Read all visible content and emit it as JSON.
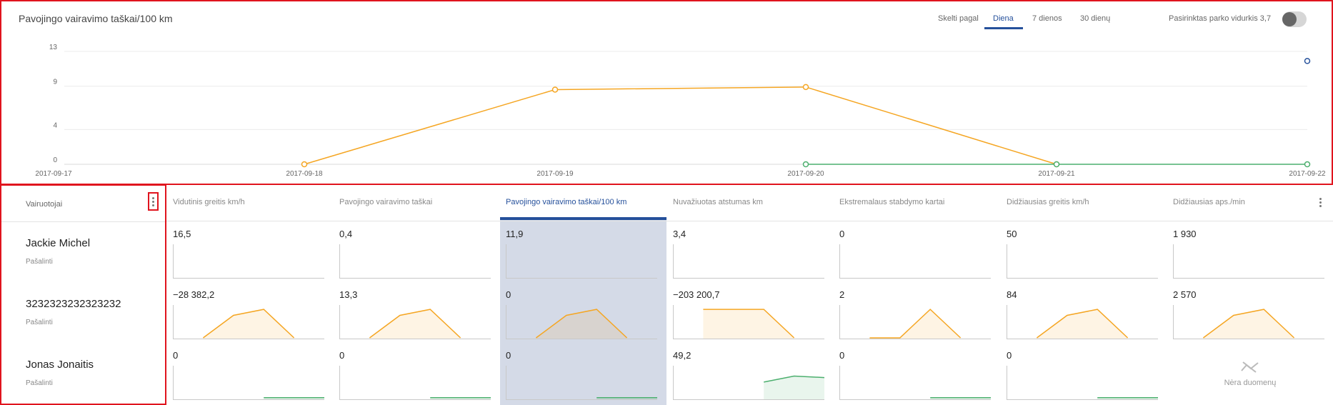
{
  "chart": {
    "title": "Pavojingo vairavimo taškai/100 km",
    "range_tabs": [
      "Skelti pagal",
      "Diena",
      "7 dienos",
      "30 dienų"
    ],
    "active_tab": "Diena",
    "park_average_label": "Pasirinktas parko vidurkis 3,7",
    "toggle_on": false
  },
  "chart_data": {
    "type": "line",
    "x": [
      "2017-09-17",
      "2017-09-18",
      "2017-09-19",
      "2017-09-20",
      "2017-09-21",
      "2017-09-22"
    ],
    "y_ticks": [
      0,
      4,
      9,
      13
    ],
    "ylim": [
      0,
      13
    ],
    "series": [
      {
        "color": "#f5a623",
        "points": [
          [
            "2017-09-18",
            0
          ],
          [
            "2017-09-19",
            8.6
          ],
          [
            "2017-09-20",
            8.9
          ],
          [
            "2017-09-21",
            0
          ]
        ]
      },
      {
        "color": "#4caf6e",
        "points": [
          [
            "2017-09-20",
            0
          ],
          [
            "2017-09-21",
            0
          ],
          [
            "2017-09-22",
            0
          ]
        ]
      },
      {
        "color": "#25509b",
        "points": [
          [
            "2017-09-22",
            11.9
          ]
        ]
      }
    ]
  },
  "drivers_header": {
    "label": "Vairuotojai"
  },
  "drivers": [
    {
      "name": "Jackie Michel",
      "action": "Pašalinti"
    },
    {
      "name": "3232323232323232",
      "action": "Pašalinti"
    },
    {
      "name": "Jonas Jonaitis",
      "action": "Pašalinti"
    }
  ],
  "metrics": [
    "Vidutinis greitis km/h",
    "Pavojingo vairavimo taškai",
    "Pavojingo vairavimo taškai/100 km",
    "Nuvažiuotas atstumas km",
    "Ekstremalaus stabdymo kartai",
    "Didžiausias greitis km/h",
    "Didžiausias aps./min"
  ],
  "active_metric": 2,
  "values": [
    [
      "16,5",
      "0,4",
      "11,9",
      "3,4",
      "0",
      "50",
      "1 930"
    ],
    [
      "−28 382,2",
      "13,3",
      "0",
      "−203 200,7",
      "2",
      "84",
      "2 570"
    ],
    [
      "0",
      "0",
      "0",
      "49,2",
      "0",
      "0",
      ""
    ]
  ],
  "sparkline_colors": {
    "trend": "#f5a623",
    "flat": "#4caf6e"
  },
  "no_data": {
    "text": "Nėra duomenų",
    "icon": "no-data-chart-icon"
  }
}
